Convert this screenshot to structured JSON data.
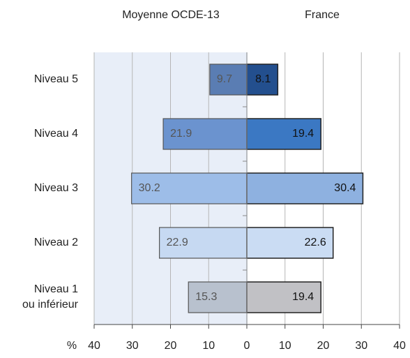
{
  "chart_data": {
    "type": "butterfly_bar",
    "categories": [
      "Niveau 5",
      "Niveau 4",
      "Niveau 3",
      "Niveau 2",
      "Niveau 1\nou inférieur"
    ],
    "series": [
      {
        "name": "Moyenne OCDE-13",
        "values": [
          9.7,
          21.9,
          30.2,
          22.9,
          15.3
        ],
        "colors": [
          "#5a7db3",
          "#6b93cf",
          "#9dbde8",
          "#c6d9f2",
          "#b8c1ce"
        ]
      },
      {
        "name": "France",
        "values": [
          8.1,
          19.4,
          30.4,
          22.6,
          19.4
        ],
        "colors": [
          "#234f8e",
          "#3b78c3",
          "#8eb1e0",
          "#cadcf3",
          "#c1c1c5"
        ]
      }
    ],
    "xlabel": "%",
    "xlim": [
      -40,
      40
    ],
    "xticks": [
      {
        "value": -40,
        "label": "40"
      },
      {
        "value": -30,
        "label": "30"
      },
      {
        "value": -20,
        "label": "20"
      },
      {
        "value": -10,
        "label": "10"
      },
      0,
      10,
      20,
      30,
      40
    ],
    "grid": true
  }
}
